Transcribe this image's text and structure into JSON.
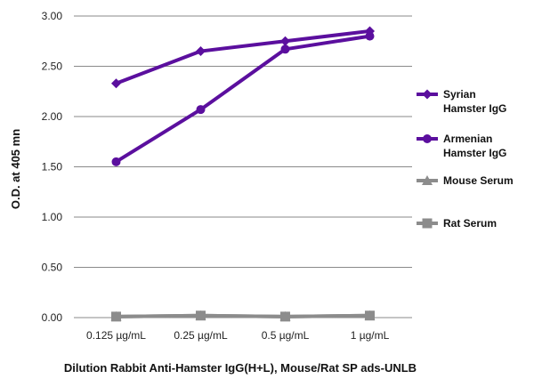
{
  "chart_data": {
    "type": "line",
    "categories": [
      "0.125 µg/mL",
      "0.25 µg/mL",
      "0.5 µg/mL",
      "1 µg/mL"
    ],
    "xlabel": "Dilution Rabbit Anti-Hamster IgG(H+L), Mouse/Rat SP ads-UNLB",
    "ylabel": "O.D. at 405 mn",
    "ylim": [
      0,
      3
    ],
    "yticks": [
      "0.00",
      "0.50",
      "1.00",
      "1.50",
      "2.00",
      "2.50",
      "3.00"
    ],
    "grid": true,
    "legend_position": "right",
    "series": [
      {
        "name_lines": [
          "Syrian",
          "Hamster IgG"
        ],
        "values": [
          2.33,
          2.65,
          2.75,
          2.85
        ],
        "color": "#5b0f9e",
        "marker": "diamond"
      },
      {
        "name_lines": [
          "Armenian",
          "Hamster IgG"
        ],
        "values": [
          1.55,
          2.07,
          2.67,
          2.8
        ],
        "color": "#5b0f9e",
        "marker": "circle"
      },
      {
        "name_lines": [
          "Mouse Serum"
        ],
        "values": [
          0.01,
          0.02,
          0.01,
          0.02
        ],
        "color": "#8c8c8c",
        "marker": "triangle"
      },
      {
        "name_lines": [
          "Rat Serum"
        ],
        "values": [
          0.01,
          0.02,
          0.01,
          0.02
        ],
        "color": "#8c8c8c",
        "marker": "square"
      }
    ]
  }
}
